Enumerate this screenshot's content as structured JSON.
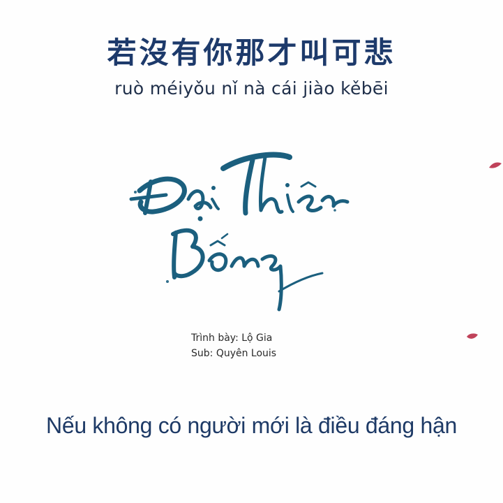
{
  "lyrics": {
    "chinese": "若沒有你那才叫可悲",
    "pinyin": "ruò méiyǒu nǐ nà cái jiào kěbēi",
    "vietnamese": "Nếu không có người mới là điều đáng hận"
  },
  "logo": {
    "title": "Đại Thiên Bồng",
    "color": "#1b5f7e"
  },
  "credits": {
    "presenter": "Trình bày: Lộ Gia",
    "sub": "Sub: Quyên Louis"
  },
  "colors": {
    "chinese_text": "#1d3a6b",
    "vietnamese_text": "#1e3a66",
    "petal": "#c0425a"
  },
  "decorations": {
    "petal_icon": "petal-icon"
  }
}
